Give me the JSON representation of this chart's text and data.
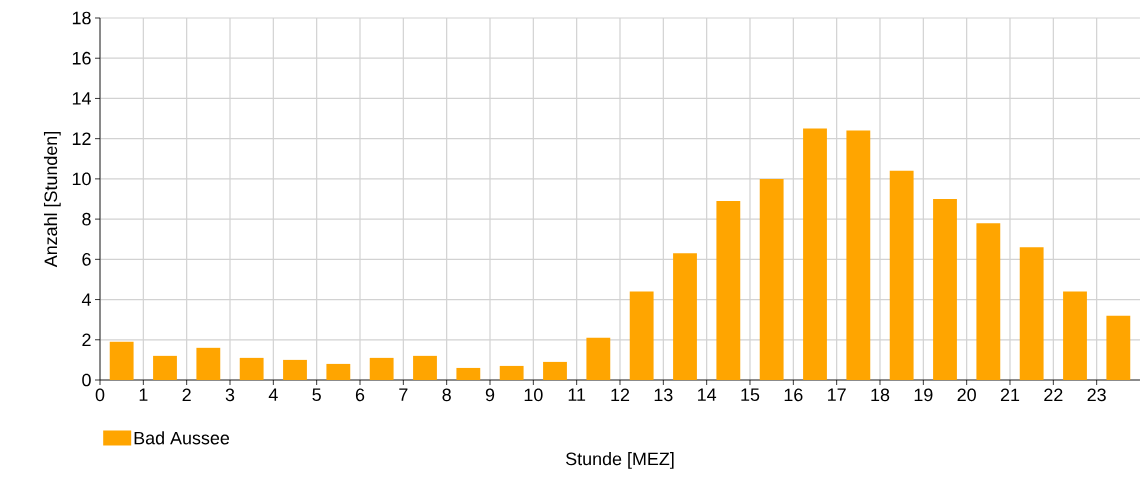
{
  "chart_data": {
    "type": "histogram",
    "xlabel": "Stunde [MEZ]",
    "ylabel": "Anzahl [Stunden]",
    "bins": [
      0,
      1,
      2,
      3,
      4,
      5,
      6,
      7,
      8,
      9,
      10,
      11,
      12,
      13,
      14,
      15,
      16,
      17,
      18,
      19,
      20,
      21,
      22,
      23,
      24
    ],
    "series": [
      {
        "name": "Bad Aussee",
        "color": "#ffa500",
        "values": [
          1.9,
          1.2,
          1.6,
          1.1,
          1.0,
          0.8,
          1.1,
          1.2,
          0.6,
          0.7,
          0.9,
          2.1,
          4.4,
          6.3,
          8.9,
          10.0,
          12.5,
          12.4,
          10.4,
          9.0,
          7.8,
          6.6,
          4.4,
          3.2
        ]
      }
    ],
    "xlim": [
      0,
      24
    ],
    "xticks": [
      0,
      1,
      2,
      3,
      4,
      5,
      6,
      7,
      8,
      9,
      10,
      11,
      12,
      13,
      14,
      15,
      16,
      17,
      18,
      19,
      20,
      21,
      22,
      23
    ],
    "ylim": [
      0,
      18
    ],
    "yticks": [
      0,
      2,
      4,
      6,
      8,
      10,
      12,
      14,
      16,
      18
    ],
    "grid": true,
    "legend": "bottom left"
  }
}
